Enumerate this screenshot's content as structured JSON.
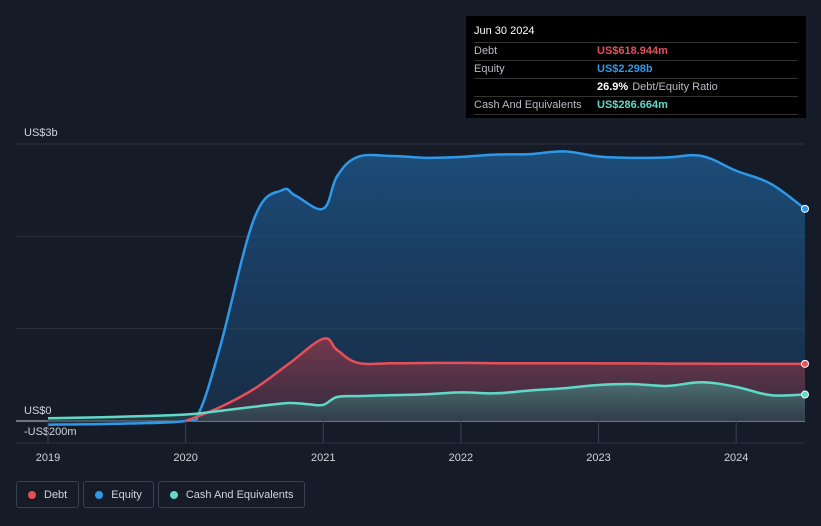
{
  "tooltip": {
    "date": "Jun 30 2024",
    "rows": [
      {
        "label": "Debt",
        "value": "US$618.944m",
        "color": "#e5505a",
        "sub": ""
      },
      {
        "label": "Equity",
        "value": "US$2.298b",
        "color": "#2f98e8",
        "sub": ""
      },
      {
        "label": "",
        "value": "26.9%",
        "color": "#ffffff",
        "sub": "Debt/Equity Ratio"
      },
      {
        "label": "Cash And Equivalents",
        "value": "US$286.664m",
        "color": "#62d9c8",
        "sub": ""
      }
    ]
  },
  "legend": [
    {
      "label": "Debt",
      "color": "#e5505a"
    },
    {
      "label": "Equity",
      "color": "#2f98e8"
    },
    {
      "label": "Cash And Equivalents",
      "color": "#62d9c8"
    }
  ],
  "chart_data": {
    "type": "area",
    "y_tick_labels": [
      "US$3b",
      "US$0",
      "-US$200m"
    ],
    "x_tick_labels": [
      "2019",
      "2020",
      "2021",
      "2022",
      "2023",
      "2024"
    ],
    "ylim": [
      -200,
      3000
    ],
    "xlim": [
      2019.0,
      2024.5
    ],
    "series": [
      {
        "name": "Equity",
        "color": "#2f98e8",
        "x": [
          2019.0,
          2019.5,
          2020.0,
          2020.1,
          2020.25,
          2020.5,
          2020.7,
          2020.8,
          2021.0,
          2021.1,
          2021.25,
          2021.5,
          2021.75,
          2022.0,
          2022.25,
          2022.5,
          2022.75,
          2023.0,
          2023.25,
          2023.5,
          2023.75,
          2024.0,
          2024.25,
          2024.5
        ],
        "values": [
          -40,
          -30,
          0,
          100,
          800,
          2200,
          2500,
          2440,
          2300,
          2650,
          2860,
          2870,
          2850,
          2860,
          2885,
          2890,
          2920,
          2865,
          2850,
          2855,
          2870,
          2710,
          2570,
          2298
        ]
      },
      {
        "name": "Debt",
        "color": "#e5505a",
        "x": [
          2020.0,
          2020.25,
          2020.5,
          2020.75,
          2021.0,
          2021.1,
          2021.25,
          2021.5,
          2021.75,
          2022.0,
          2022.25,
          2022.5,
          2022.75,
          2023.0,
          2023.25,
          2023.5,
          2023.75,
          2024.0,
          2024.25,
          2024.5
        ],
        "values": [
          0,
          150,
          350,
          620,
          890,
          770,
          630,
          625,
          628,
          630,
          626,
          625,
          626,
          624,
          624,
          622,
          621,
          620,
          619,
          618.944
        ]
      },
      {
        "name": "Cash And Equivalents",
        "color": "#62d9c8",
        "x": [
          2019.0,
          2019.5,
          2020.0,
          2020.25,
          2020.5,
          2020.75,
          2020.9,
          2021.0,
          2021.1,
          2021.25,
          2021.5,
          2021.75,
          2022.0,
          2022.25,
          2022.5,
          2022.75,
          2023.0,
          2023.25,
          2023.5,
          2023.75,
          2024.0,
          2024.25,
          2024.5
        ],
        "values": [
          30,
          45,
          70,
          110,
          155,
          195,
          180,
          175,
          260,
          270,
          280,
          290,
          310,
          300,
          330,
          355,
          390,
          400,
          380,
          420,
          370,
          280,
          286.664
        ]
      }
    ]
  }
}
